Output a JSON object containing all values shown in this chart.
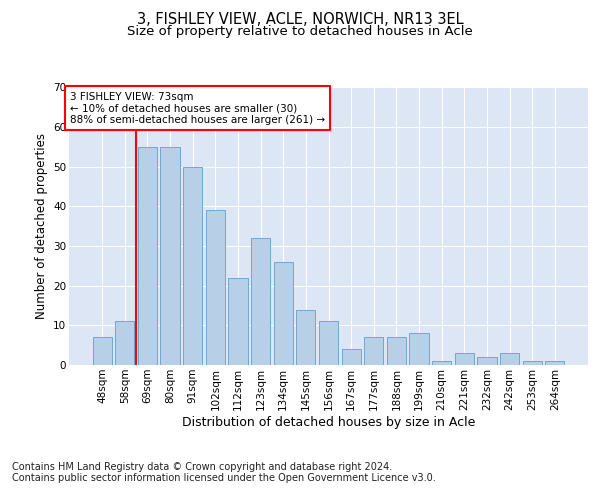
{
  "title": "3, FISHLEY VIEW, ACLE, NORWICH, NR13 3EL",
  "subtitle": "Size of property relative to detached houses in Acle",
  "xlabel": "Distribution of detached houses by size in Acle",
  "ylabel": "Number of detached properties",
  "categories": [
    "48sqm",
    "58sqm",
    "69sqm",
    "80sqm",
    "91sqm",
    "102sqm",
    "112sqm",
    "123sqm",
    "134sqm",
    "145sqm",
    "156sqm",
    "167sqm",
    "177sqm",
    "188sqm",
    "199sqm",
    "210sqm",
    "221sqm",
    "232sqm",
    "242sqm",
    "253sqm",
    "264sqm"
  ],
  "values": [
    7,
    11,
    55,
    55,
    50,
    39,
    22,
    32,
    26,
    14,
    11,
    4,
    7,
    7,
    8,
    1,
    3,
    2,
    3,
    1,
    1
  ],
  "bar_color": "#b8cfe8",
  "bar_edge_color": "#6fa8d4",
  "vline_color": "red",
  "vline_index": 2,
  "annotation_text": "3 FISHLEY VIEW: 73sqm\n← 10% of detached houses are smaller (30)\n88% of semi-detached houses are larger (261) →",
  "annotation_box_color": "white",
  "annotation_box_edge": "red",
  "ylim": [
    0,
    70
  ],
  "yticks": [
    0,
    10,
    20,
    30,
    40,
    50,
    60,
    70
  ],
  "background_color": "#dce6f5",
  "grid_color": "white",
  "footer_text": "Contains HM Land Registry data © Crown copyright and database right 2024.\nContains public sector information licensed under the Open Government Licence v3.0.",
  "title_fontsize": 10.5,
  "subtitle_fontsize": 9.5,
  "xlabel_fontsize": 9,
  "ylabel_fontsize": 8.5,
  "tick_fontsize": 7.5,
  "annotation_fontsize": 7.5,
  "footer_fontsize": 7
}
